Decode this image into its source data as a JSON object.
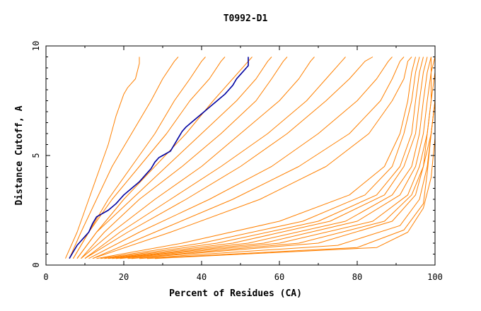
{
  "chart_data": {
    "type": "line",
    "title": "T0992-D1",
    "xlabel": "Percent of Residues (CA)",
    "ylabel": "Distance Cutoff, A",
    "xlim": [
      0,
      100
    ],
    "ylim": [
      0,
      10
    ],
    "x_ticks": [
      0,
      20,
      40,
      60,
      80,
      100
    ],
    "y_ticks": [
      0,
      5,
      10
    ],
    "grid": false,
    "colors": {
      "highlight": "#0000a0",
      "others": "#ff8000"
    },
    "highlight_series": {
      "x": [
        6,
        7,
        8,
        9,
        10,
        11,
        12,
        13,
        14,
        16,
        18,
        19,
        20,
        22,
        24,
        26,
        27,
        28,
        29,
        30,
        32,
        33,
        34,
        35,
        36,
        38,
        40,
        42,
        44,
        46,
        47,
        48,
        49,
        50,
        51,
        52,
        52
      ],
      "y": [
        0.3,
        0.6,
        0.9,
        1.1,
        1.3,
        1.5,
        1.9,
        2.2,
        2.3,
        2.5,
        2.8,
        3.0,
        3.2,
        3.5,
        3.8,
        4.2,
        4.4,
        4.7,
        4.9,
        5.0,
        5.2,
        5.5,
        5.8,
        6.1,
        6.3,
        6.6,
        6.9,
        7.2,
        7.5,
        7.8,
        8.0,
        8.2,
        8.5,
        8.7,
        8.9,
        9.1,
        9.5
      ]
    },
    "series": [
      {
        "x": [
          5,
          8,
          11,
          14,
          16,
          18,
          20,
          21,
          22,
          23,
          24,
          24
        ],
        "y": [
          0.3,
          1.5,
          3.0,
          4.5,
          5.5,
          6.8,
          7.8,
          8.1,
          8.3,
          8.5,
          9.2,
          9.5
        ]
      },
      {
        "x": [
          6,
          9,
          13,
          17,
          22,
          27,
          30,
          33,
          34
        ],
        "y": [
          0.3,
          1.5,
          3.0,
          4.5,
          6.0,
          7.5,
          8.5,
          9.3,
          9.5
        ]
      },
      {
        "x": [
          7,
          11,
          16,
          22,
          28,
          33,
          37,
          40,
          41
        ],
        "y": [
          0.3,
          1.5,
          3.0,
          4.5,
          6.0,
          7.5,
          8.5,
          9.3,
          9.5
        ]
      },
      {
        "x": [
          7,
          11,
          17,
          24,
          31,
          37,
          42,
          45,
          46
        ],
        "y": [
          0.3,
          1.5,
          3.0,
          4.5,
          6.0,
          7.5,
          8.5,
          9.3,
          9.5
        ]
      },
      {
        "x": [
          8,
          13,
          20,
          28,
          36,
          43,
          48,
          52,
          53
        ],
        "y": [
          0.3,
          1.5,
          3.0,
          4.5,
          6.0,
          7.5,
          8.5,
          9.3,
          9.5
        ]
      },
      {
        "x": [
          8,
          13,
          22,
          31,
          40,
          49,
          54,
          57,
          58
        ],
        "y": [
          0.3,
          1.5,
          3.0,
          4.5,
          6.0,
          7.5,
          8.5,
          9.3,
          9.5
        ]
      },
      {
        "x": [
          9,
          15,
          24,
          35,
          45,
          54,
          58,
          61,
          62
        ],
        "y": [
          0.3,
          1.5,
          3.0,
          4.5,
          6.0,
          7.5,
          8.5,
          9.3,
          9.5
        ]
      },
      {
        "x": [
          9,
          17,
          28,
          40,
          50,
          60,
          65,
          68,
          69
        ],
        "y": [
          0.3,
          1.5,
          3.0,
          4.5,
          6.0,
          7.5,
          8.5,
          9.3,
          9.5
        ]
      },
      {
        "x": [
          10,
          19,
          32,
          45,
          57,
          67,
          72,
          76,
          77
        ],
        "y": [
          0.3,
          1.5,
          3.0,
          4.5,
          6.0,
          7.5,
          8.5,
          9.3,
          9.5
        ]
      },
      {
        "x": [
          10,
          21,
          36,
          50,
          62,
          72,
          78,
          82,
          84
        ],
        "y": [
          0.3,
          1.5,
          3.0,
          4.5,
          6.0,
          7.5,
          8.5,
          9.3,
          9.5
        ]
      },
      {
        "x": [
          11,
          24,
          42,
          58,
          70,
          80,
          85,
          88,
          89
        ],
        "y": [
          0.3,
          1.5,
          3.0,
          4.5,
          6.0,
          7.5,
          8.5,
          9.3,
          9.5
        ]
      },
      {
        "x": [
          12,
          28,
          48,
          65,
          78,
          86,
          89,
          91,
          92
        ],
        "y": [
          0.3,
          1.5,
          3.0,
          4.5,
          6.0,
          7.5,
          8.5,
          9.3,
          9.5
        ]
      },
      {
        "x": [
          12,
          32,
          55,
          72,
          83,
          89,
          92,
          93,
          94
        ],
        "y": [
          0.3,
          1.5,
          3.0,
          4.5,
          6.0,
          7.5,
          8.5,
          9.3,
          9.5
        ]
      },
      {
        "x": [
          13,
          35,
          60,
          78,
          87,
          91,
          93,
          94,
          95
        ],
        "y": [
          0.3,
          1.0,
          2.0,
          3.2,
          4.5,
          6.0,
          7.5,
          8.8,
          9.5
        ]
      },
      {
        "x": [
          14,
          40,
          66,
          82,
          89,
          92,
          94,
          95,
          96
        ],
        "y": [
          0.3,
          1.0,
          2.0,
          3.2,
          4.5,
          6.0,
          7.5,
          8.8,
          9.5
        ]
      },
      {
        "x": [
          15,
          44,
          70,
          85,
          91,
          94,
          95,
          96,
          97
        ],
        "y": [
          0.3,
          1.0,
          2.0,
          3.2,
          4.5,
          6.0,
          7.5,
          8.8,
          9.5
        ]
      },
      {
        "x": [
          16,
          48,
          73,
          87,
          92,
          95,
          96,
          97,
          98
        ],
        "y": [
          0.3,
          1.0,
          2.0,
          3.2,
          4.5,
          6.0,
          7.5,
          8.8,
          9.5
        ]
      },
      {
        "x": [
          17,
          52,
          77,
          89,
          94,
          96,
          97,
          98,
          99
        ],
        "y": [
          0.3,
          1.0,
          2.0,
          3.2,
          4.5,
          6.0,
          7.5,
          8.8,
          9.5
        ]
      },
      {
        "x": [
          18,
          56,
          80,
          91,
          95,
          97,
          98,
          99,
          99
        ],
        "y": [
          0.3,
          1.0,
          2.0,
          3.2,
          4.5,
          6.0,
          7.5,
          8.8,
          9.5
        ]
      },
      {
        "x": [
          19,
          60,
          84,
          93,
          96,
          98,
          99,
          99,
          100
        ],
        "y": [
          0.3,
          1.0,
          2.0,
          3.2,
          4.5,
          6.0,
          7.5,
          8.8,
          9.5
        ]
      },
      {
        "x": [
          21,
          65,
          87,
          94,
          97,
          98,
          99,
          100,
          100
        ],
        "y": [
          0.3,
          1.0,
          2.0,
          3.2,
          4.5,
          6.0,
          7.5,
          8.8,
          9.5
        ]
      },
      {
        "x": [
          22,
          70,
          89,
          95,
          97,
          99,
          100,
          100,
          100
        ],
        "y": [
          0.3,
          1.0,
          2.0,
          3.2,
          4.5,
          6.0,
          7.5,
          8.8,
          9.5
        ]
      },
      {
        "x": [
          24,
          75,
          91,
          96,
          98,
          99,
          100,
          100,
          100
        ],
        "y": [
          0.3,
          0.9,
          1.8,
          3.0,
          4.5,
          6.0,
          7.5,
          8.8,
          9.5
        ]
      },
      {
        "x": [
          26,
          80,
          92,
          97,
          98,
          99,
          100,
          100,
          100
        ],
        "y": [
          0.3,
          0.8,
          1.6,
          2.8,
          4.2,
          6.0,
          7.5,
          8.8,
          9.5
        ]
      },
      {
        "x": [
          28,
          85,
          93,
          97,
          99,
          100,
          100,
          100,
          100
        ],
        "y": [
          0.3,
          0.8,
          1.5,
          2.6,
          4.0,
          5.8,
          7.5,
          8.8,
          9.5
        ]
      }
    ]
  }
}
